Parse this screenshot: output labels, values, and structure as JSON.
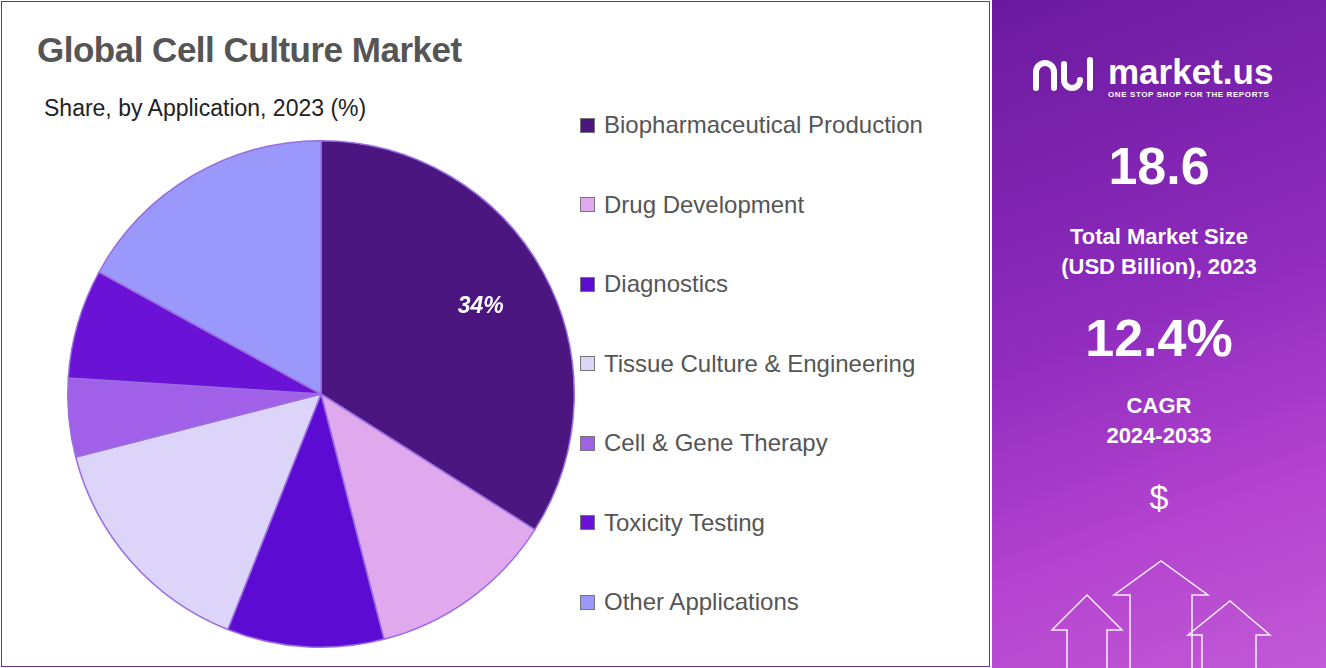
{
  "chart_data": {
    "type": "pie",
    "title": "Global Cell Culture Market",
    "subtitle": "Share, by Application, 2023 (%)",
    "categories": [
      "Biopharmaceutical Production",
      "Drug Development",
      "Diagnostics",
      "Tissue Culture & Engineering",
      "Cell & Gene Therapy",
      "Toxicity Testing",
      "Other Applications"
    ],
    "values": [
      34,
      12,
      10,
      15,
      5,
      7,
      17
    ],
    "colors": [
      "#4b167f",
      "#e0a9ee",
      "#5c0bd3",
      "#dcd4f9",
      "#a060e8",
      "#6a12d6",
      "#9b98fb"
    ],
    "data_labels": true,
    "value_labels": [
      "34%",
      null,
      null,
      null,
      null,
      null,
      null
    ],
    "legend": "right"
  },
  "panel": {
    "logo": "market.us",
    "tagline": "ONE STOP SHOP FOR THE REPORTS",
    "market_size": "18.6",
    "market_size_label": [
      "Total Market Size",
      "(USD Billion), 2023"
    ],
    "cagr": "12.4%",
    "cagr_label": [
      "CAGR",
      "2024-2033"
    ],
    "currency": "$"
  }
}
